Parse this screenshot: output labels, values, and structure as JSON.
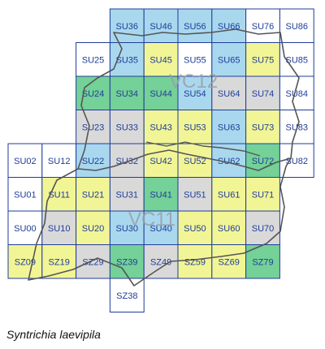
{
  "species_name": "Syntrichia laevipila",
  "vc_labels": [
    "VC12",
    "VC11"
  ],
  "legend_colors": {
    "blue": "#a9d8ee",
    "green": "#74d197",
    "yellow": "#f2f595",
    "gray": "#d9d9d9",
    "white": "#ffffff",
    "grid": "#1f3d99"
  },
  "cells": [
    {
      "label": "SU36",
      "color": "blue"
    },
    {
      "label": "SU46",
      "color": "blue"
    },
    {
      "label": "SU56",
      "color": "blue"
    },
    {
      "label": "SU66",
      "color": "blue"
    },
    {
      "label": "SU76",
      "color": "white"
    },
    {
      "label": "SU86",
      "color": "white"
    },
    {
      "label": "SU25",
      "color": "white"
    },
    {
      "label": "SU35",
      "color": "blue"
    },
    {
      "label": "SU45",
      "color": "yellow"
    },
    {
      "label": "SU55",
      "color": "white"
    },
    {
      "label": "SU65",
      "color": "blue"
    },
    {
      "label": "SU75",
      "color": "yellow"
    },
    {
      "label": "SU85",
      "color": "white"
    },
    {
      "label": "SU24",
      "color": "green"
    },
    {
      "label": "SU34",
      "color": "green"
    },
    {
      "label": "SU44",
      "color": "green"
    },
    {
      "label": "SU54",
      "color": "blue"
    },
    {
      "label": "SU64",
      "color": "gray"
    },
    {
      "label": "SU74",
      "color": "gray"
    },
    {
      "label": "SU84",
      "color": "white"
    },
    {
      "label": "SU23",
      "color": "gray"
    },
    {
      "label": "SU33",
      "color": "gray"
    },
    {
      "label": "SU43",
      "color": "yellow"
    },
    {
      "label": "SU53",
      "color": "yellow"
    },
    {
      "label": "SU63",
      "color": "blue"
    },
    {
      "label": "SU73",
      "color": "yellow"
    },
    {
      "label": "SU83",
      "color": "white"
    },
    {
      "label": "SU02",
      "color": "white"
    },
    {
      "label": "SU12",
      "color": "white"
    },
    {
      "label": "SU22",
      "color": "blue"
    },
    {
      "label": "SU32",
      "color": "gray"
    },
    {
      "label": "SU42",
      "color": "yellow"
    },
    {
      "label": "SU52",
      "color": "yellow"
    },
    {
      "label": "SU62",
      "color": "blue"
    },
    {
      "label": "SU72",
      "color": "green"
    },
    {
      "label": "SU82",
      "color": "white"
    },
    {
      "label": "SU01",
      "color": "white"
    },
    {
      "label": "SU11",
      "color": "yellow"
    },
    {
      "label": "SU21",
      "color": "yellow"
    },
    {
      "label": "SU31",
      "color": "gray"
    },
    {
      "label": "SU41",
      "color": "green"
    },
    {
      "label": "SU51",
      "color": "gray"
    },
    {
      "label": "SU61",
      "color": "yellow"
    },
    {
      "label": "SU71",
      "color": "yellow"
    },
    {
      "label": "SU00",
      "color": "white"
    },
    {
      "label": "SU10",
      "color": "gray"
    },
    {
      "label": "SU20",
      "color": "yellow"
    },
    {
      "label": "SU30",
      "color": "blue"
    },
    {
      "label": "SU40",
      "color": "blue"
    },
    {
      "label": "SU50",
      "color": "yellow"
    },
    {
      "label": "SU60",
      "color": "yellow"
    },
    {
      "label": "SU70",
      "color": "gray"
    },
    {
      "label": "SZ09",
      "color": "yellow"
    },
    {
      "label": "SZ19",
      "color": "yellow"
    },
    {
      "label": "SZ29",
      "color": "gray"
    },
    {
      "label": "SZ39",
      "color": "green"
    },
    {
      "label": "SZ49",
      "color": "gray"
    },
    {
      "label": "SZ59",
      "color": "yellow"
    },
    {
      "label": "SZ69",
      "color": "yellow"
    },
    {
      "label": "SZ79",
      "color": "green"
    },
    {
      "label": "SZ38",
      "color": "white"
    }
  ]
}
